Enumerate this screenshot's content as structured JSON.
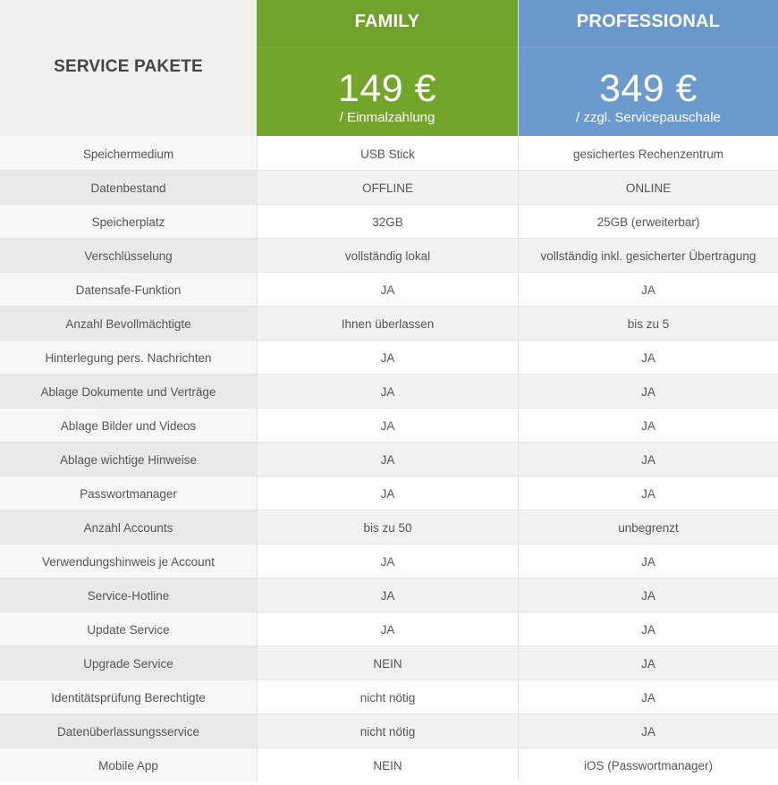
{
  "header": {
    "label": "SERVICE PAKETE",
    "plans": [
      {
        "name": "FAMILY",
        "price": "149 €",
        "note": "/ Einmalzahlung",
        "color": "#73a52b"
      },
      {
        "name": "PROFESSIONAL",
        "price": "349 €",
        "note": "/ zzgl. Servicepauschale",
        "color": "#6d9acd"
      }
    ]
  },
  "rows": [
    {
      "feature": "Speichermedium",
      "family": "USB Stick",
      "professional": "gesichertes Rechenzentrum"
    },
    {
      "feature": "Datenbestand",
      "family": "OFFLINE",
      "professional": "ONLINE"
    },
    {
      "feature": "Speicherplatz",
      "family": "32GB",
      "professional": "25GB (erweiterbar)"
    },
    {
      "feature": "Verschlüsselung",
      "family": "vollständig lokal",
      "professional": "vollständig inkl. gesicherter Übertragung"
    },
    {
      "feature": "Datensafe-Funktion",
      "family": "JA",
      "professional": "JA"
    },
    {
      "feature": "Anzahl Bevollmächtigte",
      "family": "Ihnen überlassen",
      "professional": "bis zu 5"
    },
    {
      "feature": "Hinterlegung pers. Nachrichten",
      "family": "JA",
      "professional": "JA"
    },
    {
      "feature": "Ablage Dokumente und Verträge",
      "family": "JA",
      "professional": "JA"
    },
    {
      "feature": "Ablage Bilder und Videos",
      "family": "JA",
      "professional": "JA"
    },
    {
      "feature": "Ablage wichtige Hinweise",
      "family": "JA",
      "professional": "JA"
    },
    {
      "feature": "Passwortmanager",
      "family": "JA",
      "professional": "JA"
    },
    {
      "feature": "Anzahl Accounts",
      "family": "bis zu 50",
      "professional": "unbegrenzt"
    },
    {
      "feature": "Verwendungshinweis je Account",
      "family": "JA",
      "professional": "JA"
    },
    {
      "feature": "Service-Hotline",
      "family": "JA",
      "professional": "JA"
    },
    {
      "feature": "Update Service",
      "family": "JA",
      "professional": "JA"
    },
    {
      "feature": "Upgrade Service",
      "family": "NEIN",
      "professional": "JA"
    },
    {
      "feature": "Identitätsprüfung Berechtigte",
      "family": "nicht nötig",
      "professional": "JA"
    },
    {
      "feature": "Datenüberlassungsservice",
      "family": "nicht nötig",
      "professional": "JA"
    },
    {
      "feature": "Mobile App",
      "family": "NEIN",
      "professional": "iOS (Passwortmanager)"
    }
  ]
}
